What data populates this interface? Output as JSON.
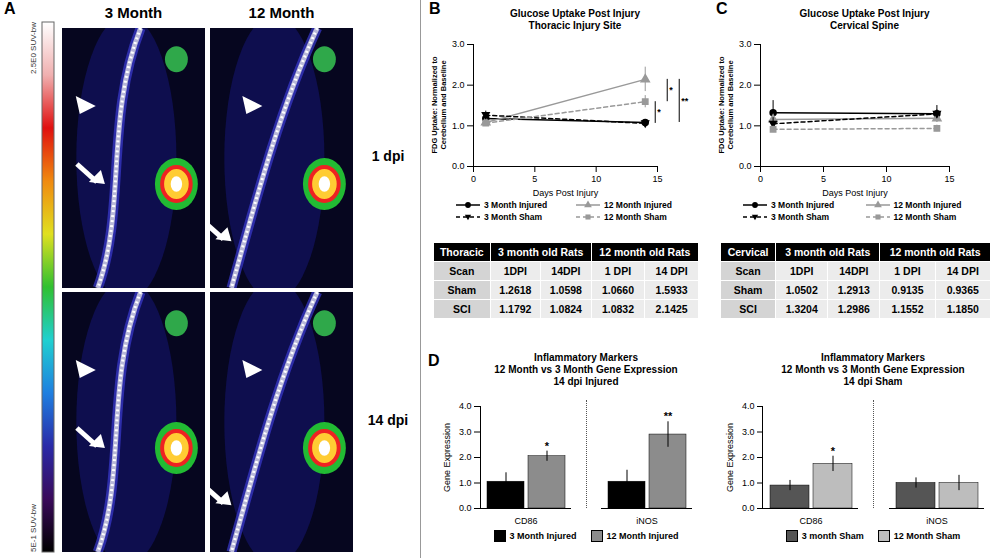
{
  "chart_data": [
    {
      "type": "image",
      "panel": "A",
      "columns": [
        "3 Month",
        "12 Month"
      ],
      "rows": [
        "1 dpi",
        "14 dpi"
      ],
      "colorbar": {
        "range": [
          0.5,
          2.5
        ],
        "ticks": [
          {
            "value": 2.5,
            "label": "2.5E0 SUV-bw"
          },
          {
            "value": 0.5,
            "label": "5E-1 SUV-bw"
          }
        ]
      }
    },
    {
      "type": "line",
      "panel": "B",
      "title": [
        "Glucose Uptake Post Injury",
        "Thoracic Injury Site"
      ],
      "xlabel": "Days Post Injury",
      "ylabel": "FDG Uptake: Normalized to Cerebellum and Baseline",
      "x": [
        1,
        14
      ],
      "xlim": [
        0,
        15
      ],
      "xticks": [
        0,
        5,
        10,
        15
      ],
      "ylim": [
        0,
        3
      ],
      "yticks": [
        0,
        1,
        2,
        3
      ],
      "legend": "bottom",
      "series": [
        {
          "name": "3 Month Injured",
          "color": "#000000",
          "marker": "circle",
          "line_style": "solid",
          "values": [
            1.1792,
            1.0824
          ],
          "errors": [
            0.08,
            0.05
          ]
        },
        {
          "name": "12 Month Injured",
          "color": "#999999",
          "marker": "triangle",
          "line_style": "solid",
          "values": [
            1.0832,
            2.1425
          ],
          "errors": [
            0.1,
            0.3
          ]
        },
        {
          "name": "3 Month Sham",
          "color": "#000000",
          "marker": "triangle-down",
          "line_style": "dashed",
          "values": [
            1.2618,
            1.0598
          ],
          "errors": [
            0.1,
            0.05
          ]
        },
        {
          "name": "12 Month Sham",
          "color": "#999999",
          "marker": "square",
          "line_style": "dashed",
          "values": [
            1.066,
            1.5933
          ],
          "errors": [
            0.08,
            0.15
          ]
        }
      ],
      "annotations": [
        {
          "text": "*",
          "between": [
            "12 Month Sham",
            "3 Month Sham"
          ]
        },
        {
          "text": "*",
          "between": [
            "12 Month Injured",
            "12 Month Sham"
          ]
        },
        {
          "text": "**",
          "between": [
            "12 Month Injured",
            "3 Month Injured"
          ]
        }
      ]
    },
    {
      "type": "table",
      "header": [
        "Thoracic",
        "3 month old Rats",
        "12 month old Rats"
      ],
      "rows": [
        [
          "Scan",
          "1DPI",
          "14DPI",
          "1 DPI",
          "14 DPI"
        ],
        [
          "Sham",
          "1.2618",
          "1.0598",
          "1.0660",
          "1.5933"
        ],
        [
          "SCI",
          "1.1792",
          "1.0824",
          "1.0832",
          "2.1425"
        ]
      ]
    },
    {
      "type": "line",
      "panel": "C",
      "title": [
        "Glucose Uptake Post Injury",
        "Cervical Spine"
      ],
      "xlabel": "Days Post Injury",
      "ylabel": "FDG Uptake: Normalized to Cerebellum and Baseline",
      "x": [
        1,
        14
      ],
      "xlim": [
        0,
        15
      ],
      "xticks": [
        0,
        5,
        10,
        15
      ],
      "ylim": [
        0,
        3
      ],
      "yticks": [
        0,
        1,
        2,
        3
      ],
      "legend": "bottom",
      "series": [
        {
          "name": "3 Month Injured",
          "color": "#000000",
          "marker": "circle",
          "line_style": "solid",
          "values": [
            1.3204,
            1.2986
          ],
          "errors": [
            0.3,
            0.2
          ]
        },
        {
          "name": "12 Month Injured",
          "color": "#999999",
          "marker": "triangle",
          "line_style": "solid",
          "values": [
            1.1552,
            1.185
          ],
          "errors": [
            0.1,
            0.1
          ]
        },
        {
          "name": "3 Month Sham",
          "color": "#000000",
          "marker": "triangle-down",
          "line_style": "dashed",
          "values": [
            1.0502,
            1.2913
          ],
          "errors": [
            0.15,
            0.1
          ]
        },
        {
          "name": "12 Month Sham",
          "color": "#999999",
          "marker": "square",
          "line_style": "dashed",
          "values": [
            0.9135,
            0.9365
          ],
          "errors": [
            0.08,
            0.08
          ]
        }
      ]
    },
    {
      "type": "table",
      "header": [
        "Cervical",
        "3 month old Rats",
        "12 month old Rats"
      ],
      "rows": [
        [
          "Scan",
          "1DPI",
          "14DPI",
          "1 DPI",
          "14 DPI"
        ],
        [
          "Sham",
          "1.0502",
          "1.2913",
          "0.9135",
          "0.9365"
        ],
        [
          "SCI",
          "1.3204",
          "1.2986",
          "1.1552",
          "1.1850"
        ]
      ]
    },
    {
      "type": "bar",
      "panel": "D",
      "title": [
        "Inflammatory Markers",
        "12 Month vs 3 Month Gene Expression",
        "14 dpi Injured"
      ],
      "ylabel": "Gene Expression",
      "categories": [
        "CD86",
        "iNOS"
      ],
      "ylim": [
        0,
        4
      ],
      "yticks": [
        0,
        1,
        2,
        3,
        4
      ],
      "legend": "bottom",
      "series": [
        {
          "name": "3 Month Injured",
          "color": "#000000",
          "values": [
            1.05,
            1.05
          ],
          "errors": [
            0.35,
            0.45
          ]
        },
        {
          "name": "12 Month Injured",
          "color": "#8c8c8c",
          "values": [
            2.05,
            2.9
          ],
          "errors": [
            0.2,
            0.5
          ],
          "annotations": [
            "*",
            "**"
          ]
        }
      ]
    },
    {
      "type": "bar",
      "title": [
        "Inflammatory Markers",
        "12 Month vs 3 Month Gene Expression",
        "14 dpi Sham"
      ],
      "ylabel": "Gene Expression",
      "categories": [
        "CD86",
        "iNOS"
      ],
      "ylim": [
        0,
        4
      ],
      "yticks": [
        0,
        1,
        2,
        3,
        4
      ],
      "legend": "bottom",
      "series": [
        {
          "name": "3 month Sham",
          "color": "#555555",
          "values": [
            0.9,
            1.0
          ],
          "errors": [
            0.2,
            0.2
          ]
        },
        {
          "name": "12 Month Sham",
          "color": "#bdbdbd",
          "values": [
            1.75,
            1.0
          ],
          "errors": [
            0.3,
            0.3
          ],
          "annotations": [
            "*",
            null
          ]
        }
      ]
    }
  ]
}
